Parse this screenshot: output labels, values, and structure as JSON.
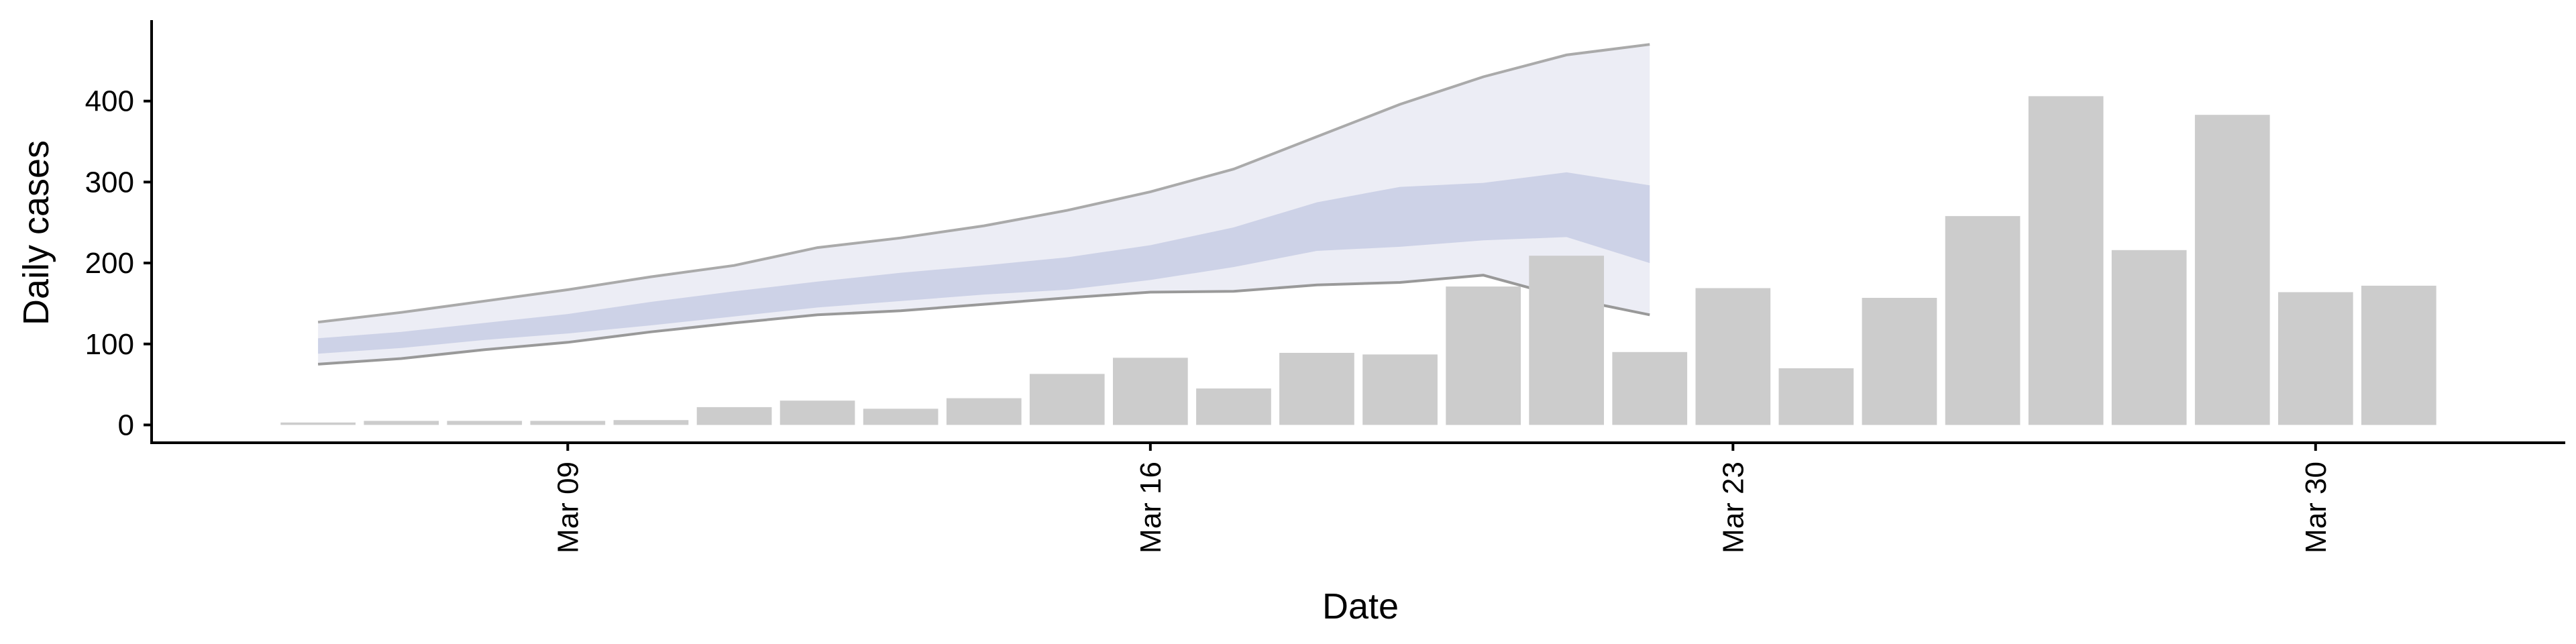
{
  "chart_data": {
    "type": "bar",
    "title": "",
    "xlabel": "Date",
    "ylabel": "Daily cases",
    "x_ticks": [
      "Mar 09",
      "Mar 16",
      "Mar 23",
      "Mar 30"
    ],
    "y_ticks": [
      0,
      100,
      200,
      300,
      400
    ],
    "ylim": [
      -22,
      500
    ],
    "xlim": [
      "2020-03-04",
      "2020-04-02"
    ],
    "grid": false,
    "legend": "none",
    "bars": {
      "name": "Daily cases",
      "color": "#cccccc",
      "dates": [
        "2020-03-06",
        "2020-03-07",
        "2020-03-08",
        "2020-03-09",
        "2020-03-10",
        "2020-03-11",
        "2020-03-12",
        "2020-03-13",
        "2020-03-14",
        "2020-03-15",
        "2020-03-16",
        "2020-03-17",
        "2020-03-18",
        "2020-03-19",
        "2020-03-20",
        "2020-03-21",
        "2020-03-22",
        "2020-03-23",
        "2020-03-24",
        "2020-03-25",
        "2020-03-26",
        "2020-03-27",
        "2020-03-28",
        "2020-03-29",
        "2020-03-30",
        "2020-03-31"
      ],
      "values": [
        3,
        5,
        5,
        5,
        6,
        22,
        30,
        20,
        33,
        63,
        83,
        45,
        89,
        87,
        171,
        209,
        90,
        169,
        70,
        157,
        258,
        406,
        216,
        383,
        164,
        172
      ]
    },
    "forecast": {
      "dates": [
        "2020-03-06",
        "2020-03-07",
        "2020-03-08",
        "2020-03-09",
        "2020-03-10",
        "2020-03-11",
        "2020-03-12",
        "2020-03-13",
        "2020-03-14",
        "2020-03-15",
        "2020-03-16",
        "2020-03-17",
        "2020-03-18",
        "2020-03-19",
        "2020-03-20",
        "2020-03-21",
        "2020-03-22"
      ],
      "outer_lower": [
        75,
        82,
        93,
        102,
        115,
        126,
        136,
        141,
        149,
        157,
        164,
        165,
        173,
        176,
        185,
        157,
        136
      ],
      "outer_upper": [
        127,
        139,
        153,
        167,
        183,
        197,
        219,
        231,
        246,
        265,
        288,
        316,
        356,
        396,
        430,
        457,
        470
      ],
      "inner_lower": [
        88,
        95,
        105,
        113,
        123,
        134,
        145,
        153,
        161,
        167,
        179,
        195,
        215,
        220,
        228,
        232,
        200
      ],
      "inner_upper": [
        107,
        115,
        126,
        137,
        152,
        165,
        177,
        188,
        197,
        207,
        222,
        244,
        275,
        294,
        299,
        312,
        296
      ],
      "outer_color": "#dcdfec",
      "inner_color": "#b9bfdd",
      "outer_line_color": "#999999",
      "upper_line_color": "#aaaaaa"
    }
  }
}
